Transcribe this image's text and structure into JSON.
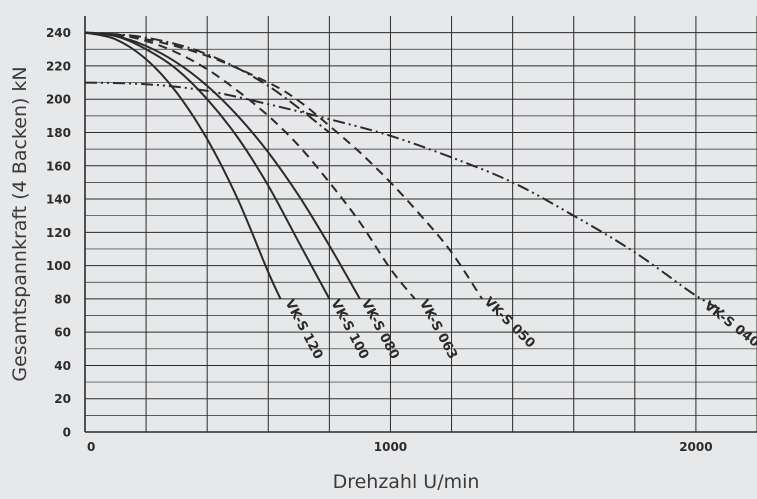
{
  "chart_data": {
    "type": "line",
    "xlabel": "Drehzahl U/min",
    "ylabel": "Gesamtspannkraft (4 Backen) kN",
    "xlim": [
      0,
      2200
    ],
    "ylim": [
      0,
      250
    ],
    "x_ticks": [
      0,
      1000,
      2000
    ],
    "x_tick_labels": [
      "0",
      "1000",
      "2000"
    ],
    "y_ticks": [
      0,
      20,
      40,
      60,
      80,
      100,
      120,
      140,
      160,
      180,
      200,
      220,
      240
    ],
    "y_tick_labels": [
      "0",
      "20",
      "40",
      "60",
      "80",
      "100",
      "120",
      "140",
      "160",
      "180",
      "200",
      "220",
      "240"
    ],
    "grid": true,
    "series": [
      {
        "name": "VK-S 120",
        "style": "solid",
        "x": [
          0,
          100,
          200,
          300,
          400,
          500,
          600,
          640
        ],
        "y": [
          240,
          236,
          224,
          204,
          176,
          140,
          96,
          80
        ]
      },
      {
        "name": "VK-S 100",
        "style": "solid",
        "x": [
          0,
          100,
          200,
          300,
          400,
          500,
          600,
          700,
          800
        ],
        "y": [
          240,
          238,
          230,
          218,
          200,
          177,
          148,
          114,
          80
        ]
      },
      {
        "name": "VK-S 080",
        "style": "solid",
        "x": [
          0,
          100,
          200,
          300,
          400,
          500,
          600,
          700,
          800,
          900
        ],
        "y": [
          240,
          238,
          232,
          222,
          208,
          190,
          168,
          142,
          112,
          80
        ]
      },
      {
        "name": "VK-S 063",
        "style": "dashed",
        "x": [
          0,
          100,
          200,
          300,
          400,
          500,
          600,
          700,
          800,
          900,
          1000,
          1080
        ],
        "y": [
          240,
          239,
          235,
          228,
          218,
          205,
          190,
          172,
          150,
          126,
          98,
          80
        ]
      },
      {
        "name": "VK-S 050",
        "style": "dashed",
        "x": [
          0,
          200,
          400,
          600,
          700,
          800,
          900,
          1000,
          1100,
          1200,
          1300
        ],
        "y": [
          240,
          236,
          226,
          210,
          199,
          184,
          168,
          150,
          130,
          108,
          80
        ]
      },
      {
        "name": "VK-S 040",
        "style": "dashdotdot",
        "x": [
          0,
          200,
          400,
          600,
          800,
          1000,
          1200,
          1400,
          1600,
          1800,
          2000,
          2100
        ],
        "y": [
          210,
          209,
          205,
          197,
          188,
          178,
          165,
          150,
          130,
          108,
          82,
          72
        ]
      }
    ],
    "extra_curves": [
      {
        "style": "dashdot",
        "x": [
          0,
          200,
          400,
          600,
          800
        ],
        "y": [
          240,
          237,
          227,
          208,
          180
        ]
      }
    ],
    "labels": [
      {
        "text": "VK-S 120",
        "x": 655,
        "y": 78,
        "rotation": 62
      },
      {
        "text": "VK-S 100",
        "x": 805,
        "y": 78,
        "rotation": 62
      },
      {
        "text": "VK-S 080",
        "x": 905,
        "y": 78,
        "rotation": 62
      },
      {
        "text": "VK-S 063",
        "x": 1095,
        "y": 78,
        "rotation": 62
      },
      {
        "text": "VK-S 050",
        "x": 1305,
        "y": 78,
        "rotation": 45
      },
      {
        "text": "VK-S 040",
        "x": 2025,
        "y": 75,
        "rotation": 38
      }
    ],
    "colors": {
      "background": "#e7e8ea",
      "line": "#2b2b2b",
      "grid": "#2b2b2b"
    }
  }
}
